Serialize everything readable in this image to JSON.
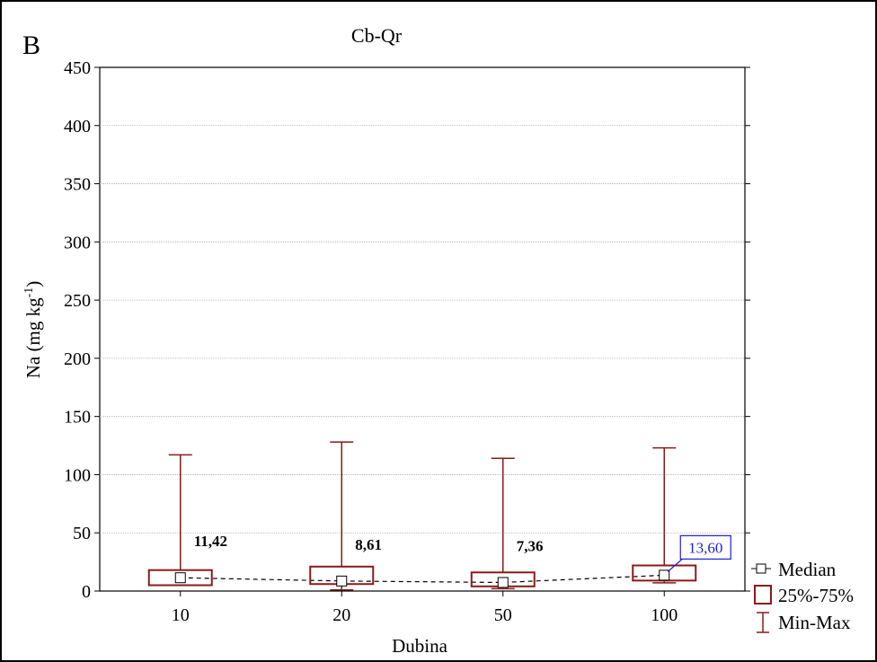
{
  "chart_data": {
    "type": "boxplot",
    "panel_letter": "B",
    "title": "Cb-Qr",
    "xlabel": "Dubina",
    "ylabel_main": "Na (mg kg",
    "ylabel_sup": "-1",
    "ylabel_close": ")",
    "ylim": [
      0,
      450
    ],
    "yticks": [
      0,
      50,
      100,
      150,
      200,
      250,
      300,
      350,
      400,
      450
    ],
    "grid": true,
    "categories": [
      "10",
      "20",
      "50",
      "100"
    ],
    "median": [
      11.42,
      8.61,
      7.36,
      13.6
    ],
    "q1": [
      5,
      6,
      4,
      9
    ],
    "q3": [
      18,
      21,
      16,
      22
    ],
    "min": [
      5,
      1,
      2,
      7
    ],
    "max": [
      117,
      128,
      114,
      123
    ],
    "median_labels": [
      "11,42",
      "8,61",
      "7,36",
      "13,60"
    ],
    "highlighted_index": 3,
    "legend_position": "bottom-right",
    "legend": [
      "Median",
      "25%-75%",
      "Min-Max"
    ],
    "colors": {
      "box": "#8b1a1a",
      "highlight": "#1f1fd0",
      "grid": "#aaaaaa"
    }
  }
}
